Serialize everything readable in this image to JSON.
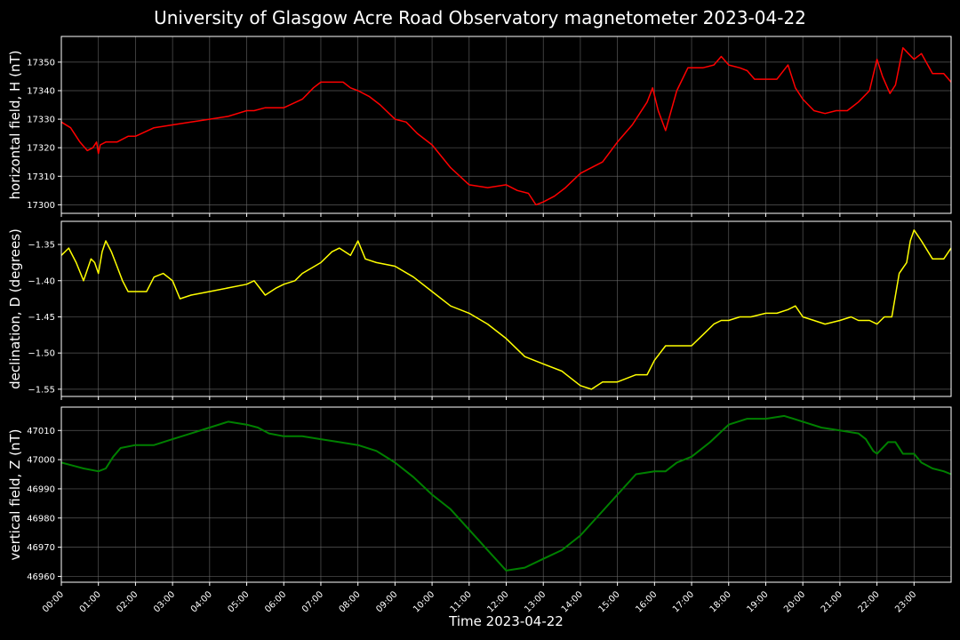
{
  "chart_data": {
    "type": "line",
    "title": "University of Glasgow Acre Road Observatory magnetometer 2023-04-22",
    "xlabel": "Time 2023-04-22",
    "x_ticks": [
      "00:00",
      "01:00",
      "02:00",
      "03:00",
      "04:00",
      "05:00",
      "06:00",
      "07:00",
      "08:00",
      "09:00",
      "10:00",
      "11:00",
      "12:00",
      "13:00",
      "14:00",
      "15:00",
      "16:00",
      "17:00",
      "18:00",
      "19:00",
      "20:00",
      "21:00",
      "22:00",
      "23:00"
    ],
    "xlim_hours": [
      0,
      24
    ],
    "grid": true,
    "panels": [
      {
        "ylabel": "horizontal field, H (nT)",
        "color": "#ff0000",
        "ylim": [
          17297,
          17359
        ],
        "yticks": [
          17300,
          17310,
          17320,
          17330,
          17340,
          17350
        ],
        "x": [
          0,
          0.25,
          0.5,
          0.7,
          0.85,
          0.95,
          1.0,
          1.05,
          1.2,
          1.5,
          1.8,
          2.0,
          2.5,
          3.0,
          3.5,
          4.0,
          4.5,
          5.0,
          5.2,
          5.5,
          6.0,
          6.5,
          6.8,
          7.0,
          7.3,
          7.6,
          7.8,
          8.0,
          8.3,
          8.6,
          9.0,
          9.3,
          9.6,
          10.0,
          10.5,
          11.0,
          11.5,
          12.0,
          12.3,
          12.6,
          12.8,
          13.0,
          13.3,
          13.6,
          14.0,
          14.3,
          14.6,
          15.0,
          15.4,
          15.8,
          15.95,
          16.1,
          16.3,
          16.6,
          16.9,
          17.3,
          17.6,
          17.8,
          18.0,
          18.3,
          18.5,
          18.7,
          19.0,
          19.3,
          19.6,
          19.8,
          20.0,
          20.3,
          20.6,
          20.9,
          21.2,
          21.5,
          21.8,
          22.0,
          22.15,
          22.35,
          22.5,
          22.7,
          22.85,
          23.0,
          23.2,
          23.5,
          23.8,
          24.0
        ],
        "values": [
          17329,
          17327,
          17322,
          17319,
          17320,
          17322,
          17318,
          17321,
          17322,
          17322,
          17324,
          17324,
          17327,
          17328,
          17329,
          17330,
          17331,
          17333,
          17333,
          17334,
          17334,
          17337,
          17341,
          17343,
          17343,
          17343,
          17341,
          17340,
          17338,
          17335,
          17330,
          17329,
          17325,
          17321,
          17313,
          17307,
          17306,
          17307,
          17305,
          17304,
          17300,
          17301,
          17303,
          17306,
          17311,
          17313,
          17315,
          17322,
          17328,
          17336,
          17341,
          17333,
          17326,
          17340,
          17348,
          17348,
          17349,
          17352,
          17349,
          17348,
          17347,
          17344,
          17344,
          17344,
          17349,
          17341,
          17337,
          17333,
          17332,
          17333,
          17333,
          17336,
          17340,
          17351,
          17345,
          17339,
          17342,
          17355,
          17353,
          17351,
          17353,
          17346,
          17346,
          17343
        ]
      },
      {
        "ylabel": "declination, D (degrees)",
        "color": "#ffff00",
        "ylim": [
          -1.56,
          -1.318
        ],
        "yticks": [
          -1.35,
          -1.4,
          -1.45,
          -1.5,
          -1.55
        ],
        "x": [
          0,
          0.2,
          0.4,
          0.6,
          0.8,
          0.9,
          1.0,
          1.1,
          1.2,
          1.35,
          1.5,
          1.65,
          1.8,
          2.0,
          2.3,
          2.5,
          2.75,
          3.0,
          3.2,
          3.5,
          4.0,
          4.5,
          5.0,
          5.2,
          5.5,
          5.8,
          6.0,
          6.3,
          6.5,
          7.0,
          7.3,
          7.5,
          7.8,
          8.0,
          8.2,
          8.5,
          9.0,
          9.5,
          10.0,
          10.5,
          11.0,
          11.5,
          12.0,
          12.5,
          13.0,
          13.5,
          14.0,
          14.3,
          14.6,
          15.0,
          15.5,
          15.8,
          16.0,
          16.3,
          16.6,
          17.0,
          17.3,
          17.6,
          17.8,
          18.0,
          18.3,
          18.6,
          19.0,
          19.3,
          19.6,
          19.8,
          20.0,
          20.3,
          20.6,
          21.0,
          21.3,
          21.5,
          21.8,
          22.0,
          22.2,
          22.4,
          22.6,
          22.8,
          22.9,
          23.0,
          23.2,
          23.5,
          23.8,
          24.0
        ],
        "values": [
          -1.365,
          -1.355,
          -1.375,
          -1.4,
          -1.37,
          -1.375,
          -1.39,
          -1.36,
          -1.345,
          -1.36,
          -1.38,
          -1.4,
          -1.415,
          -1.415,
          -1.415,
          -1.395,
          -1.39,
          -1.4,
          -1.425,
          -1.42,
          -1.415,
          -1.41,
          -1.405,
          -1.4,
          -1.42,
          -1.41,
          -1.405,
          -1.4,
          -1.39,
          -1.375,
          -1.36,
          -1.355,
          -1.365,
          -1.345,
          -1.37,
          -1.375,
          -1.38,
          -1.395,
          -1.415,
          -1.435,
          -1.445,
          -1.46,
          -1.48,
          -1.505,
          -1.515,
          -1.525,
          -1.545,
          -1.55,
          -1.54,
          -1.54,
          -1.53,
          -1.53,
          -1.51,
          -1.49,
          -1.49,
          -1.49,
          -1.475,
          -1.46,
          -1.455,
          -1.455,
          -1.45,
          -1.45,
          -1.445,
          -1.445,
          -1.44,
          -1.435,
          -1.45,
          -1.455,
          -1.46,
          -1.455,
          -1.45,
          -1.455,
          -1.455,
          -1.46,
          -1.45,
          -1.45,
          -1.39,
          -1.375,
          -1.345,
          -1.33,
          -1.345,
          -1.37,
          -1.37,
          -1.355
        ]
      },
      {
        "ylabel": "vertical field, Z (nT)",
        "color": "#008000",
        "ylim": [
          46958,
          47018
        ],
        "yticks": [
          46960,
          46970,
          46980,
          46990,
          47000,
          47010
        ],
        "x": [
          0,
          0.3,
          0.6,
          1.0,
          1.2,
          1.4,
          1.6,
          2.0,
          2.5,
          3.0,
          3.5,
          4.0,
          4.5,
          5.0,
          5.3,
          5.6,
          6.0,
          6.5,
          7.0,
          7.5,
          8.0,
          8.5,
          9.0,
          9.5,
          10.0,
          10.5,
          11.0,
          11.5,
          12.0,
          12.5,
          13.0,
          13.5,
          14.0,
          14.5,
          15.0,
          15.5,
          16.0,
          16.3,
          16.6,
          17.0,
          17.5,
          18.0,
          18.5,
          19.0,
          19.5,
          20.0,
          20.5,
          21.0,
          21.5,
          21.7,
          21.9,
          22.0,
          22.3,
          22.5,
          22.7,
          23.0,
          23.2,
          23.5,
          23.8,
          24.0
        ],
        "values": [
          46999,
          46998,
          46997,
          46996,
          46997,
          47001,
          47004,
          47005,
          47005,
          47007,
          47009,
          47011,
          47013,
          47012,
          47011,
          47009,
          47008,
          47008,
          47007,
          47006,
          47005,
          47003,
          46999,
          46994,
          46988,
          46983,
          46976,
          46969,
          46962,
          46963,
          46966,
          46969,
          46974,
          46981,
          46988,
          46995,
          46996,
          46996,
          46999,
          47001,
          47006,
          47012,
          47014,
          47014,
          47015,
          47013,
          47011,
          47010,
          47009,
          47007,
          47003,
          47002,
          47006,
          47006,
          47002,
          47002,
          46999,
          46997,
          46996,
          46995
        ]
      }
    ]
  }
}
